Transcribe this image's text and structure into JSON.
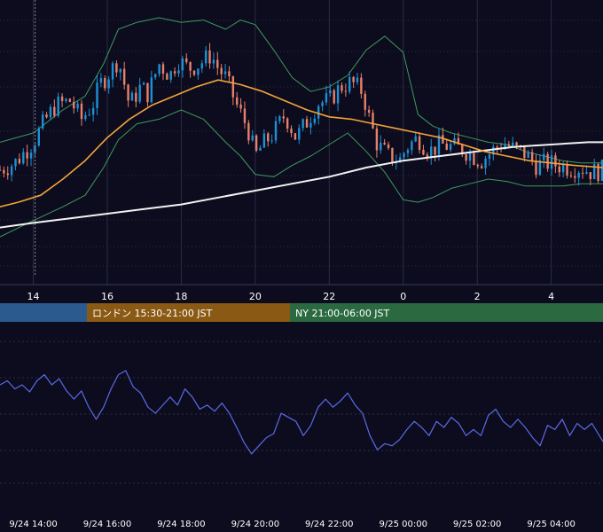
{
  "colors": {
    "background": "#0c0c1e",
    "grid": "#2c2c44",
    "candle_up": "#1e90d6",
    "candle_down": "#e8806a",
    "ma_short": "#f3a33a",
    "ma_long": "#f2f2f2",
    "bollinger": "#3f9a5c",
    "oscillator": "#5c6ae6",
    "session_tokyo": "#2b5b8e",
    "session_london": "#8a5a14",
    "session_ny": "#2b6a40",
    "text": "#ffffff",
    "crosshair": "#8a8aa0"
  },
  "sessions": [
    {
      "label": "",
      "color": "#2b5b8e"
    },
    {
      "label": "ロンドン 15:30-21:00 JST",
      "color": "#8a5a14"
    },
    {
      "label": "NY 21:00-06:00 JST",
      "color": "#2b6a40"
    }
  ],
  "chart_data": [
    {
      "type": "candlestick",
      "title": "",
      "xaxis_ticks": [
        "14",
        "16",
        "18",
        "20",
        "22",
        "0",
        "2",
        "4"
      ],
      "tick_hours": [
        14,
        16,
        18,
        20,
        22,
        24,
        26,
        28
      ],
      "xlim_hours": [
        13.1,
        29.4
      ],
      "crosshair_hour": 14.05,
      "grid": true,
      "close_path": [
        [
          13.1,
          0.34
        ],
        [
          13.5,
          0.37
        ],
        [
          14.0,
          0.46
        ],
        [
          14.3,
          0.55
        ],
        [
          14.6,
          0.62
        ],
        [
          15.0,
          0.64
        ],
        [
          15.3,
          0.56
        ],
        [
          15.6,
          0.62
        ],
        [
          15.8,
          0.71
        ],
        [
          16.1,
          0.77
        ],
        [
          16.3,
          0.82
        ],
        [
          16.6,
          0.62
        ],
        [
          16.9,
          0.7
        ],
        [
          17.1,
          0.67
        ],
        [
          17.4,
          0.8
        ],
        [
          17.7,
          0.75
        ],
        [
          17.9,
          0.82
        ],
        [
          18.2,
          0.78
        ],
        [
          18.5,
          0.8
        ],
        [
          18.8,
          0.84
        ],
        [
          19.0,
          0.78
        ],
        [
          19.2,
          0.74
        ],
        [
          19.5,
          0.62
        ],
        [
          19.8,
          0.52
        ],
        [
          20.0,
          0.4
        ],
        [
          20.2,
          0.45
        ],
        [
          20.5,
          0.5
        ],
        [
          20.8,
          0.58
        ],
        [
          21.1,
          0.48
        ],
        [
          21.4,
          0.55
        ],
        [
          21.7,
          0.63
        ],
        [
          22.0,
          0.64
        ],
        [
          22.3,
          0.7
        ],
        [
          22.6,
          0.72
        ],
        [
          22.9,
          0.68
        ],
        [
          23.1,
          0.55
        ],
        [
          23.3,
          0.45
        ],
        [
          23.6,
          0.4
        ],
        [
          23.9,
          0.38
        ],
        [
          24.1,
          0.44
        ],
        [
          24.4,
          0.48
        ],
        [
          24.7,
          0.42
        ],
        [
          25.0,
          0.45
        ],
        [
          25.3,
          0.44
        ],
        [
          25.6,
          0.43
        ],
        [
          25.9,
          0.4
        ],
        [
          26.1,
          0.38
        ],
        [
          26.4,
          0.42
        ],
        [
          26.7,
          0.46
        ],
        [
          27.0,
          0.43
        ],
        [
          27.3,
          0.41
        ],
        [
          27.6,
          0.36
        ],
        [
          27.9,
          0.37
        ],
        [
          28.2,
          0.36
        ],
        [
          28.5,
          0.35
        ],
        [
          28.8,
          0.35
        ],
        [
          29.1,
          0.33
        ],
        [
          29.4,
          0.34
        ]
      ],
      "ma_short_path": [
        [
          13.1,
          0.18
        ],
        [
          13.6,
          0.2
        ],
        [
          14.2,
          0.23
        ],
        [
          14.8,
          0.3
        ],
        [
          15.4,
          0.38
        ],
        [
          16.0,
          0.48
        ],
        [
          16.6,
          0.56
        ],
        [
          17.2,
          0.62
        ],
        [
          17.8,
          0.66
        ],
        [
          18.4,
          0.7
        ],
        [
          19.0,
          0.73
        ],
        [
          19.6,
          0.71
        ],
        [
          20.2,
          0.68
        ],
        [
          20.8,
          0.64
        ],
        [
          21.4,
          0.6
        ],
        [
          22.0,
          0.57
        ],
        [
          22.6,
          0.56
        ],
        [
          23.2,
          0.54
        ],
        [
          23.8,
          0.52
        ],
        [
          24.4,
          0.5
        ],
        [
          25.0,
          0.48
        ],
        [
          25.6,
          0.45
        ],
        [
          26.2,
          0.42
        ],
        [
          26.8,
          0.4
        ],
        [
          27.4,
          0.38
        ],
        [
          28.0,
          0.37
        ],
        [
          28.6,
          0.36
        ],
        [
          29.4,
          0.35
        ]
      ],
      "ma_long_path": [
        [
          13.1,
          0.09
        ],
        [
          14.0,
          0.11
        ],
        [
          15.0,
          0.13
        ],
        [
          16.0,
          0.15
        ],
        [
          17.0,
          0.17
        ],
        [
          18.0,
          0.19
        ],
        [
          19.0,
          0.22
        ],
        [
          20.0,
          0.25
        ],
        [
          21.0,
          0.28
        ],
        [
          22.0,
          0.31
        ],
        [
          23.0,
          0.35
        ],
        [
          24.0,
          0.38
        ],
        [
          25.0,
          0.4
        ],
        [
          26.0,
          0.42
        ],
        [
          27.0,
          0.44
        ],
        [
          28.0,
          0.45
        ],
        [
          29.0,
          0.46
        ],
        [
          29.4,
          0.46
        ]
      ],
      "bollinger_upper_path": [
        [
          13.1,
          0.46
        ],
        [
          14.0,
          0.5
        ],
        [
          14.8,
          0.6
        ],
        [
          15.4,
          0.66
        ],
        [
          15.9,
          0.8
        ],
        [
          16.3,
          0.95
        ],
        [
          16.8,
          0.98
        ],
        [
          17.4,
          1.0
        ],
        [
          18.0,
          0.98
        ],
        [
          18.6,
          0.99
        ],
        [
          19.2,
          0.95
        ],
        [
          19.6,
          0.99
        ],
        [
          20.0,
          0.97
        ],
        [
          20.5,
          0.86
        ],
        [
          21.0,
          0.74
        ],
        [
          21.5,
          0.68
        ],
        [
          22.0,
          0.7
        ],
        [
          22.5,
          0.75
        ],
        [
          23.0,
          0.86
        ],
        [
          23.5,
          0.92
        ],
        [
          24.0,
          0.85
        ],
        [
          24.4,
          0.58
        ],
        [
          24.8,
          0.53
        ],
        [
          25.3,
          0.5
        ],
        [
          25.8,
          0.48
        ],
        [
          26.3,
          0.46
        ],
        [
          26.8,
          0.45
        ],
        [
          27.3,
          0.42
        ],
        [
          27.8,
          0.4
        ],
        [
          28.3,
          0.38
        ],
        [
          28.8,
          0.37
        ],
        [
          29.4,
          0.37
        ]
      ],
      "bollinger_lower_path": [
        [
          13.1,
          0.05
        ],
        [
          14.0,
          0.12
        ],
        [
          14.8,
          0.18
        ],
        [
          15.4,
          0.23
        ],
        [
          15.9,
          0.35
        ],
        [
          16.3,
          0.47
        ],
        [
          16.8,
          0.54
        ],
        [
          17.4,
          0.56
        ],
        [
          18.0,
          0.6
        ],
        [
          18.6,
          0.56
        ],
        [
          19.2,
          0.46
        ],
        [
          19.6,
          0.4
        ],
        [
          20.0,
          0.32
        ],
        [
          20.5,
          0.31
        ],
        [
          21.0,
          0.36
        ],
        [
          21.5,
          0.4
        ],
        [
          22.0,
          0.45
        ],
        [
          22.5,
          0.5
        ],
        [
          23.0,
          0.42
        ],
        [
          23.5,
          0.33
        ],
        [
          24.0,
          0.21
        ],
        [
          24.4,
          0.2
        ],
        [
          24.8,
          0.22
        ],
        [
          25.3,
          0.26
        ],
        [
          25.8,
          0.28
        ],
        [
          26.3,
          0.3
        ],
        [
          26.8,
          0.29
        ],
        [
          27.3,
          0.27
        ],
        [
          27.8,
          0.27
        ],
        [
          28.3,
          0.27
        ],
        [
          28.8,
          0.28
        ],
        [
          29.4,
          0.28
        ]
      ]
    },
    {
      "type": "line",
      "title": "",
      "xaxis_ticks": [
        "9/24 14:00",
        "9/24 16:00",
        "9/24 18:00",
        "9/24 20:00",
        "9/24 22:00",
        "9/25 00:00",
        "9/25 02:00",
        "9/25 04:00"
      ],
      "tick_hours": [
        14,
        16,
        18,
        20,
        22,
        24,
        26,
        28
      ],
      "xlim_hours": [
        13.1,
        29.4
      ],
      "grid": true,
      "series": [
        {
          "path": [
            [
              13.1,
              0.62
            ],
            [
              13.3,
              0.66
            ],
            [
              13.5,
              0.58
            ],
            [
              13.7,
              0.62
            ],
            [
              13.9,
              0.55
            ],
            [
              14.1,
              0.66
            ],
            [
              14.3,
              0.72
            ],
            [
              14.5,
              0.62
            ],
            [
              14.7,
              0.68
            ],
            [
              14.9,
              0.56
            ],
            [
              15.1,
              0.48
            ],
            [
              15.3,
              0.56
            ],
            [
              15.5,
              0.4
            ],
            [
              15.7,
              0.28
            ],
            [
              15.9,
              0.4
            ],
            [
              16.1,
              0.58
            ],
            [
              16.3,
              0.72
            ],
            [
              16.5,
              0.76
            ],
            [
              16.7,
              0.6
            ],
            [
              16.9,
              0.54
            ],
            [
              17.1,
              0.4
            ],
            [
              17.3,
              0.34
            ],
            [
              17.5,
              0.42
            ],
            [
              17.7,
              0.5
            ],
            [
              17.9,
              0.42
            ],
            [
              18.1,
              0.58
            ],
            [
              18.3,
              0.5
            ],
            [
              18.5,
              0.38
            ],
            [
              18.7,
              0.42
            ],
            [
              18.9,
              0.36
            ],
            [
              19.1,
              0.44
            ],
            [
              19.3,
              0.34
            ],
            [
              19.5,
              0.2
            ],
            [
              19.7,
              0.05
            ],
            [
              19.9,
              -0.06
            ],
            [
              20.1,
              0.02
            ],
            [
              20.3,
              0.1
            ],
            [
              20.5,
              0.14
            ],
            [
              20.7,
              0.34
            ],
            [
              20.9,
              0.3
            ],
            [
              21.1,
              0.26
            ],
            [
              21.3,
              0.12
            ],
            [
              21.5,
              0.22
            ],
            [
              21.7,
              0.4
            ],
            [
              21.9,
              0.48
            ],
            [
              22.1,
              0.4
            ],
            [
              22.3,
              0.46
            ],
            [
              22.5,
              0.54
            ],
            [
              22.7,
              0.42
            ],
            [
              22.9,
              0.34
            ],
            [
              23.1,
              0.12
            ],
            [
              23.3,
              -0.02
            ],
            [
              23.5,
              0.04
            ],
            [
              23.7,
              0.02
            ],
            [
              23.9,
              0.08
            ],
            [
              24.1,
              0.18
            ],
            [
              24.3,
              0.26
            ],
            [
              24.5,
              0.2
            ],
            [
              24.7,
              0.12
            ],
            [
              24.9,
              0.26
            ],
            [
              25.1,
              0.2
            ],
            [
              25.3,
              0.3
            ],
            [
              25.5,
              0.24
            ],
            [
              25.7,
              0.12
            ],
            [
              25.9,
              0.18
            ],
            [
              26.1,
              0.12
            ],
            [
              26.3,
              0.32
            ],
            [
              26.5,
              0.38
            ],
            [
              26.7,
              0.26
            ],
            [
              26.9,
              0.2
            ],
            [
              27.1,
              0.28
            ],
            [
              27.3,
              0.2
            ],
            [
              27.5,
              0.1
            ],
            [
              27.7,
              0.02
            ],
            [
              27.9,
              0.22
            ],
            [
              28.1,
              0.18
            ],
            [
              28.3,
              0.28
            ],
            [
              28.5,
              0.12
            ],
            [
              28.7,
              0.24
            ],
            [
              28.9,
              0.18
            ],
            [
              29.1,
              0.24
            ],
            [
              29.4,
              0.06
            ]
          ]
        }
      ]
    }
  ]
}
